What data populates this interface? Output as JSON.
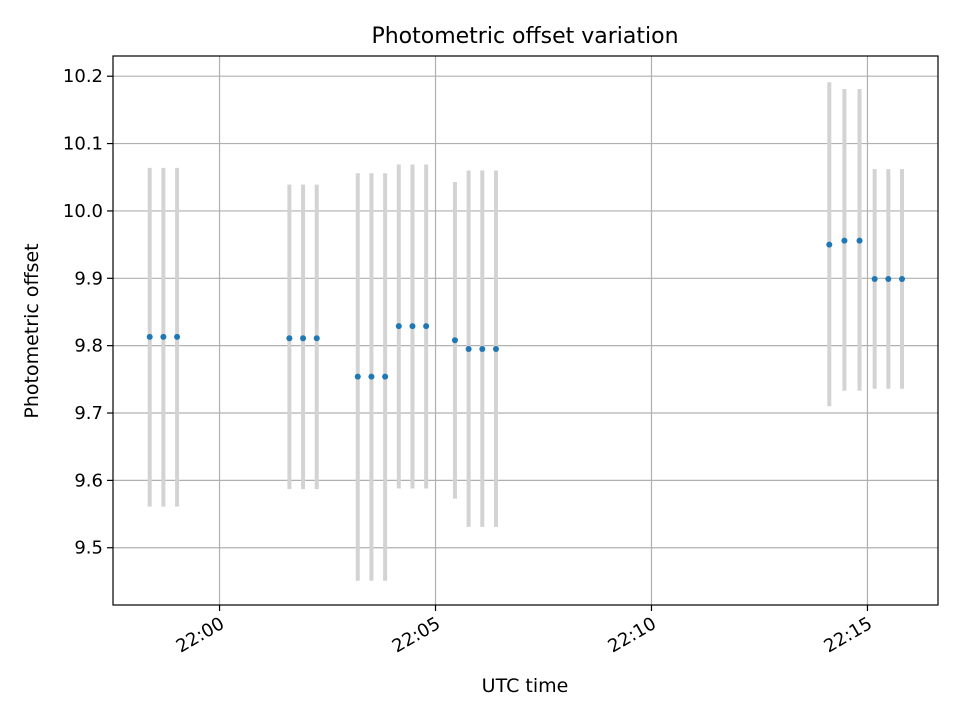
{
  "chart_data": {
    "type": "scatter",
    "title": "Photometric offset variation",
    "xlabel": "UTC time",
    "ylabel": "Photometric offset",
    "x_unit": "UTC time (HH:MM:SS)",
    "xlim": [
      "21:57:32",
      "22:16:38"
    ],
    "ylim": [
      9.415,
      10.23
    ],
    "x_ticks": [
      {
        "t": "22:00:00",
        "label": "22:00"
      },
      {
        "t": "22:05:00",
        "label": "22:05"
      },
      {
        "t": "22:10:00",
        "label": "22:10"
      },
      {
        "t": "22:15:00",
        "label": "22:15"
      }
    ],
    "y_ticks": [
      9.5,
      9.6,
      9.7,
      9.8,
      9.9,
      10.0,
      10.1,
      10.2
    ],
    "y_tick_labels": [
      "9.5",
      "9.6",
      "9.7",
      "9.8",
      "9.9",
      "10.0",
      "10.1",
      "10.2"
    ],
    "grid": true,
    "legend": "none",
    "colors": {
      "points": "#1f77b4",
      "errorbars": "#d3d3d3",
      "grid": "#b0b0b0"
    },
    "series": [
      {
        "points": [
          {
            "t": "21:58:23",
            "y": 9.813,
            "lo": 9.561,
            "hi": 10.064
          },
          {
            "t": "21:58:42",
            "y": 9.813,
            "lo": 9.561,
            "hi": 10.064
          },
          {
            "t": "21:59:01",
            "y": 9.813,
            "lo": 9.561,
            "hi": 10.064
          },
          {
            "t": "22:01:37",
            "y": 9.811,
            "lo": 9.587,
            "hi": 10.039
          },
          {
            "t": "22:01:56",
            "y": 9.811,
            "lo": 9.587,
            "hi": 10.039
          },
          {
            "t": "22:02:15",
            "y": 9.811,
            "lo": 9.587,
            "hi": 10.039
          },
          {
            "t": "22:03:12",
            "y": 9.754,
            "lo": 9.451,
            "hi": 10.056
          },
          {
            "t": "22:03:31",
            "y": 9.754,
            "lo": 9.451,
            "hi": 10.056
          },
          {
            "t": "22:03:50",
            "y": 9.754,
            "lo": 9.451,
            "hi": 10.056
          },
          {
            "t": "22:04:09",
            "y": 9.829,
            "lo": 9.588,
            "hi": 10.069
          },
          {
            "t": "22:04:28",
            "y": 9.829,
            "lo": 9.588,
            "hi": 10.069
          },
          {
            "t": "22:04:47",
            "y": 9.829,
            "lo": 9.588,
            "hi": 10.069
          },
          {
            "t": "22:05:27",
            "y": 9.808,
            "lo": 9.573,
            "hi": 10.043
          },
          {
            "t": "22:05:46",
            "y": 9.795,
            "lo": 9.531,
            "hi": 10.06
          },
          {
            "t": "22:06:05",
            "y": 9.795,
            "lo": 9.531,
            "hi": 10.06
          },
          {
            "t": "22:06:24",
            "y": 9.795,
            "lo": 9.531,
            "hi": 10.06
          },
          {
            "t": "22:14:07",
            "y": 9.95,
            "lo": 9.71,
            "hi": 10.191
          },
          {
            "t": "22:14:28",
            "y": 9.956,
            "lo": 9.733,
            "hi": 10.181
          },
          {
            "t": "22:14:49",
            "y": 9.956,
            "lo": 9.733,
            "hi": 10.181
          },
          {
            "t": "22:15:10",
            "y": 9.899,
            "lo": 9.736,
            "hi": 10.062
          },
          {
            "t": "22:15:29",
            "y": 9.899,
            "lo": 9.736,
            "hi": 10.062
          },
          {
            "t": "22:15:48",
            "y": 9.899,
            "lo": 9.736,
            "hi": 10.062
          }
        ]
      }
    ]
  }
}
